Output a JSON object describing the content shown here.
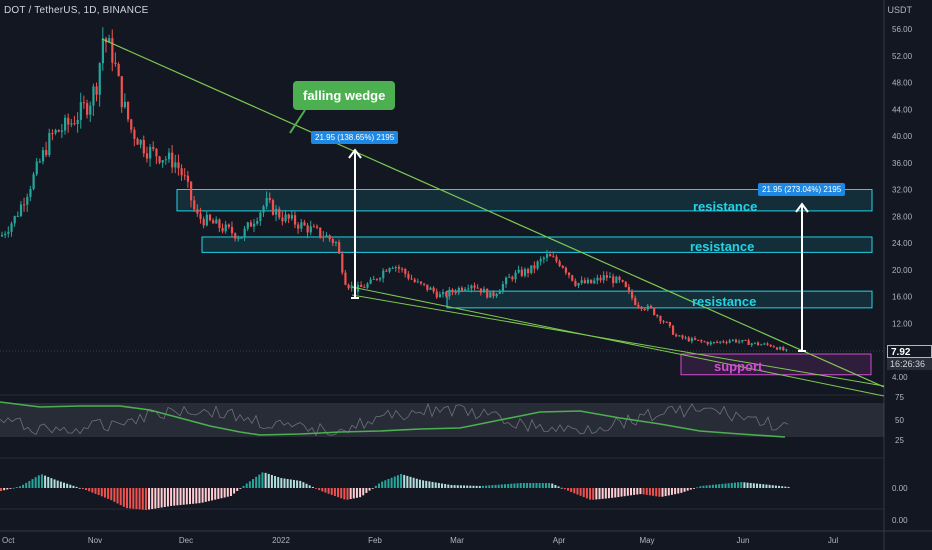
{
  "header": {
    "title": "DOT / TetherUS, 1D, BINANCE",
    "currency": "USDT"
  },
  "price_axis": {
    "labels": [
      "56.00",
      "52.00",
      "48.00",
      "44.00",
      "40.00",
      "36.00",
      "32.00",
      "28.00",
      "24.00",
      "20.00",
      "16.00",
      "12.00",
      "8.00",
      "4.00"
    ]
  },
  "indicator_axis": {
    "rsi_labels": [
      "75",
      "50",
      "25"
    ],
    "macd_labels": [
      "0.00",
      "0.00"
    ]
  },
  "time_axis": {
    "labels": [
      "Oct",
      "Nov",
      "Dec",
      "2022",
      "Feb",
      "Mar",
      "Apr",
      "May",
      "Jun",
      "Jul"
    ]
  },
  "last_price": "7.92",
  "countdown": "16:26:36",
  "annotations": {
    "wedge_callout": "falling wedge",
    "measure_left": "21.95 (138.65%) 2195",
    "measure_right": "21.95 (273.04%) 2195",
    "resistance_1": "resistance",
    "resistance_2": "resistance",
    "resistance_3": "resistance",
    "support": "support"
  },
  "colors": {
    "background": "#131722",
    "bull": "#26a69a",
    "bear": "#ef5350",
    "trendline": "#7cc94f",
    "zone_cyan": "#22d3e6",
    "zone_magenta": "#d24dd3",
    "callout_green": "#4caf50",
    "measure_blue": "#1e88e5"
  }
}
